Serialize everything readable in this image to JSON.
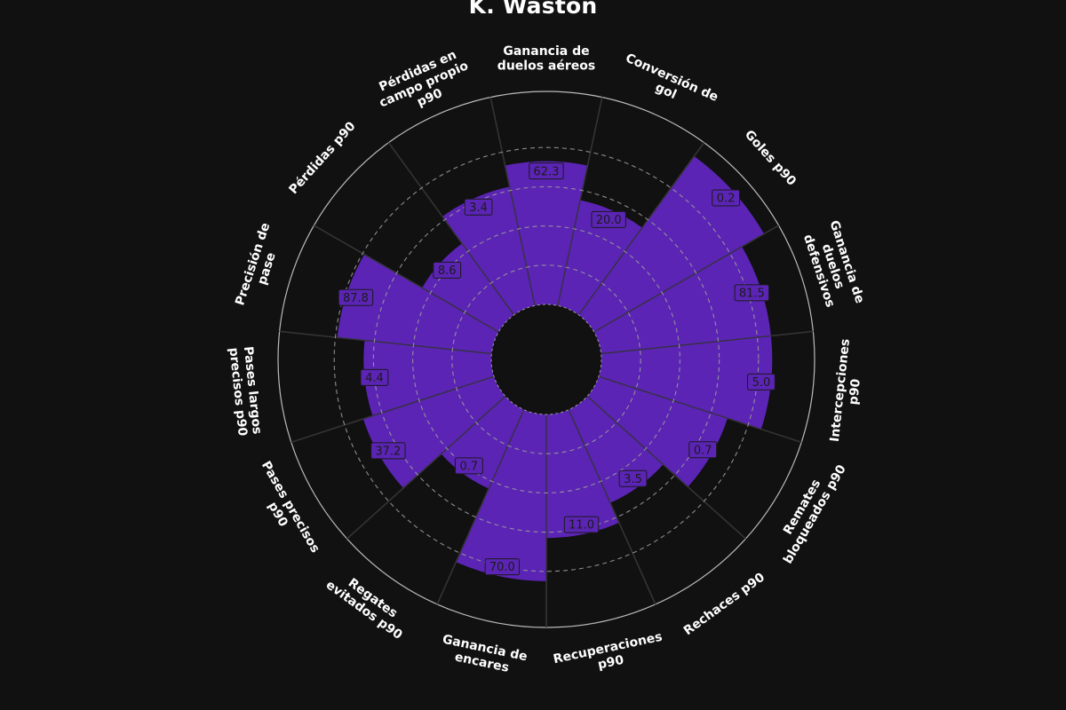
{
  "chart_data": {
    "type": "pizza",
    "title": "K. Waston",
    "rlim": [
      0,
      100
    ],
    "categories": [
      {
        "label": [
          "Ganancia de",
          "duelos aéreos"
        ],
        "value": "62.3",
        "percentile": 73
      },
      {
        "label": [
          "Conversión de",
          "gol"
        ],
        "value": "20.0",
        "percentile": 55
      },
      {
        "label": [
          "Goles p90"
        ],
        "value": "0.2",
        "percentile": 100
      },
      {
        "label": [
          "Ganancia de",
          "duelos",
          "defensivos"
        ],
        "value": "81.5",
        "percentile": 87
      },
      {
        "label": [
          "Intercepciones",
          "p90"
        ],
        "value": "5.0",
        "percentile": 87
      },
      {
        "label": [
          "Remates",
          "bloqueados p90"
        ],
        "value": "0.7",
        "percentile": 69
      },
      {
        "label": [
          "Rechaces p90"
        ],
        "value": "3.5",
        "percentile": 52
      },
      {
        "label": [
          "Recuperaciones",
          "p90"
        ],
        "value": "11.0",
        "percentile": 63
      },
      {
        "label": [
          "Ganancia de",
          "encares"
        ],
        "value": "70.0",
        "percentile": 85
      },
      {
        "label": [
          "Regates",
          "evitados p90"
        ],
        "value": "0.7",
        "percentile": 44
      },
      {
        "label": [
          "Pases precisos",
          "p90"
        ],
        "value": "37.2",
        "percentile": 70
      },
      {
        "label": [
          "Pases largos",
          "precisos p90"
        ],
        "value": "4.4",
        "percentile": 65
      },
      {
        "label": [
          "Precisión de",
          "pase"
        ],
        "value": "87.8",
        "percentile": 79
      },
      {
        "label": [
          "Pérdidas p90"
        ],
        "value": "8.6",
        "percentile": 45
      },
      {
        "label": [
          "Pérdidas en",
          "campo propio",
          "p90"
        ],
        "value": "3.4",
        "percentile": 62
      }
    ],
    "gridlines": [
      20,
      40,
      60,
      80
    ],
    "colors": {
      "background": "#111111",
      "slice": "#5b24b5",
      "value_box": "#5b24b5",
      "spokes": "#333333",
      "outer_circle": "#bbbbbb",
      "grid_dashed": "#9a9a9a",
      "label_text": "#ffffff"
    }
  }
}
